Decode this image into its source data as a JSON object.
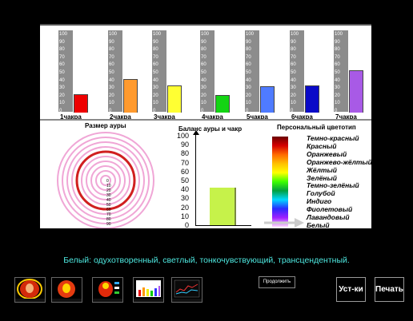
{
  "chakra_chart": {
    "ticks": [
      "100",
      "90",
      "80",
      "70",
      "60",
      "50",
      "40",
      "30",
      "20",
      "10",
      "0"
    ],
    "columns": [
      {
        "label": "1чакра",
        "value": 22,
        "color": "#ee0000"
      },
      {
        "label": "2чакра",
        "value": 40,
        "color": "#ff9a2e"
      },
      {
        "label": "3чакра",
        "value": 32,
        "color": "#ffff33"
      },
      {
        "label": "4чакра",
        "value": 21,
        "color": "#14d414"
      },
      {
        "label": "5чакра",
        "value": 31,
        "color": "#4f7bff"
      },
      {
        "label": "6чакра",
        "value": 32,
        "color": "#0a0ac8"
      },
      {
        "label": "7чакра",
        "value": 51,
        "color": "#a85ae6"
      }
    ]
  },
  "aura": {
    "title": "Размер ауры",
    "scale": [
      "0",
      "10",
      "20",
      "30",
      "40",
      "50",
      "60",
      "70",
      "80",
      "90"
    ],
    "highlight_ring": 60
  },
  "balance": {
    "title": "Баланс ауры и чакр",
    "ticks": [
      "100",
      "90",
      "80",
      "70",
      "60",
      "50",
      "40",
      "30",
      "20",
      "10",
      "0"
    ],
    "value": 42,
    "bar_color": "#c6f24a"
  },
  "personal": {
    "title": "Персональный цветотип",
    "colors": [
      "Темно-красный",
      "Красный",
      "Оранжевый",
      "Оранжево-жёлтый",
      "Жёлтый",
      "Зелёный",
      "Темно-зелёный",
      "Голубой",
      "Индиго",
      "Фиолетовый",
      "Лавандовый",
      "Белый"
    ]
  },
  "description": "Белый: одухотворенный, светлый, тонкочувствующий, трансцендентный.",
  "buttons": {
    "continue": "Продолжить",
    "settings": "Уст-ки",
    "print": "Печать"
  },
  "thumbnails": [
    "photo-thumb",
    "aura-thumb",
    "chakra-photo-thumb",
    "chart-thumb",
    "graph-thumb"
  ],
  "accent_text_color": "#4ee8e0"
}
